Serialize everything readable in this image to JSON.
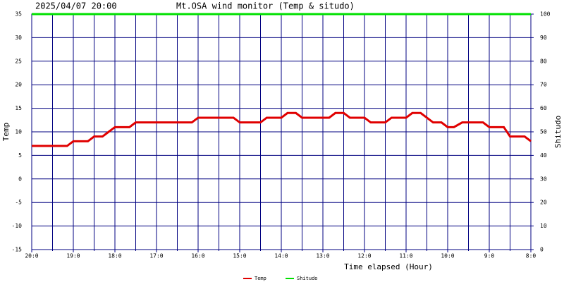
{
  "chart_data": {
    "type": "line",
    "date": "2025/04/07 20:00",
    "title": "Mt.OSA wind monitor (Temp & situdo)",
    "xlabel": "Time elapsed (Hour)",
    "ylabel": "Temp",
    "y2label": "Shitudo",
    "x": [
      0,
      0.85,
      1.0,
      1.35,
      1.5,
      1.7,
      1.85,
      2.0,
      2.35,
      2.5,
      3.85,
      4.0,
      4.85,
      5.0,
      5.5,
      5.65,
      6.0,
      6.15,
      6.35,
      6.5,
      7.15,
      7.3,
      7.5,
      7.65,
      8.0,
      8.15,
      8.5,
      8.65,
      9.0,
      9.15,
      9.35,
      9.5,
      9.65,
      9.85,
      10.0,
      10.15,
      10.35,
      10.85,
      11.0,
      11.35,
      11.5,
      11.85,
      12.0
    ],
    "series": [
      {
        "name": "Temp",
        "color": "#e00000",
        "axis": "y",
        "values": [
          7,
          7,
          8,
          8,
          9,
          9,
          10,
          11,
          11,
          12,
          12,
          13,
          13,
          12,
          12,
          13,
          13,
          14,
          14,
          13,
          13,
          14,
          14,
          13,
          13,
          12,
          12,
          13,
          13,
          14,
          14,
          13,
          12,
          12,
          11,
          11,
          12,
          12,
          11,
          11,
          9,
          9,
          8
        ]
      },
      {
        "name": "Shitudo",
        "color": "#00e000",
        "axis": "y2",
        "values": [
          100,
          100,
          100,
          100,
          100,
          100,
          100,
          100,
          100,
          100,
          100,
          100,
          100,
          100,
          100,
          100,
          100,
          100,
          100,
          100,
          100,
          100,
          100,
          100,
          100,
          100,
          100,
          100,
          100,
          100,
          100,
          100,
          100,
          100,
          100,
          100,
          100,
          100,
          100,
          100,
          100,
          100,
          100
        ]
      }
    ],
    "xlim": [
      0,
      12
    ],
    "xticks": [
      {
        "value": 0,
        "label": "20:0"
      },
      {
        "value": 1,
        "label": "19:0"
      },
      {
        "value": 2,
        "label": "18:0"
      },
      {
        "value": 3,
        "label": "17:0"
      },
      {
        "value": 4,
        "label": "16:0"
      },
      {
        "value": 5,
        "label": "15:0"
      },
      {
        "value": 6,
        "label": "14:0"
      },
      {
        "value": 7,
        "label": "13:0"
      },
      {
        "value": 8,
        "label": "12:0"
      },
      {
        "value": 9,
        "label": "11:0"
      },
      {
        "value": 10,
        "label": "10:0"
      },
      {
        "value": 11,
        "label": "9:0"
      },
      {
        "value": 12,
        "label": "8:0"
      }
    ],
    "xminor_ticks": [
      0.5,
      1.5,
      2.5,
      3.5,
      4.5,
      5.5,
      6.5,
      7.5,
      8.5,
      9.5,
      10.5,
      11.5
    ],
    "ylim": [
      -15,
      35
    ],
    "yticks": [
      -15,
      -10,
      -5,
      0,
      5,
      10,
      15,
      20,
      25,
      30,
      35
    ],
    "y2lim": [
      0,
      100
    ],
    "y2ticks": [
      0,
      10,
      20,
      30,
      40,
      50,
      60,
      70,
      80,
      90,
      100
    ],
    "grid": true,
    "grid_color": "#000080",
    "legend": "bottom"
  }
}
